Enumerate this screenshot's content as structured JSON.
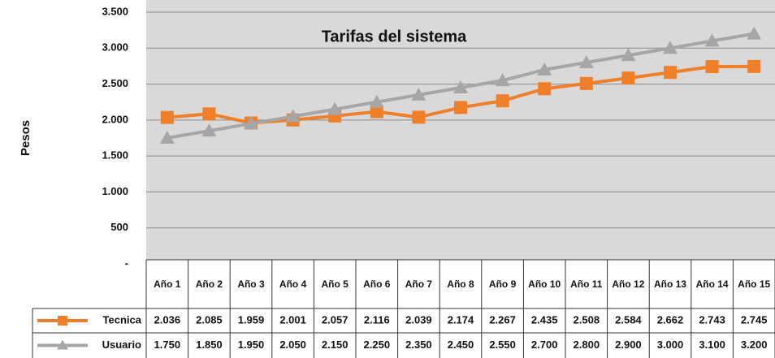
{
  "chart_data": {
    "type": "line",
    "title": "Tarifas del sistema",
    "y_label": "Pesos",
    "categories": [
      "Año 1",
      "Año 2",
      "Año 3",
      "Año 4",
      "Año 5",
      "Año 6",
      "Año 7",
      "Año 8",
      "Año 9",
      "Año 10",
      "Año 11",
      "Año 12",
      "Año 13",
      "Año 14",
      "Año 15"
    ],
    "series": [
      {
        "name": "Tecnica",
        "color": "#f07f2a",
        "marker": "square",
        "values": [
          2036,
          2085,
          1959,
          2001,
          2057,
          2116,
          2039,
          2174,
          2267,
          2435,
          2508,
          2584,
          2662,
          2743,
          2745
        ],
        "value_labels": [
          "2.036",
          "2.085",
          "1.959",
          "2.001",
          "2.057",
          "2.116",
          "2.039",
          "2.174",
          "2.267",
          "2.435",
          "2.508",
          "2.584",
          "2.662",
          "2.743",
          "2.745"
        ]
      },
      {
        "name": "Usuario",
        "color": "#a6a6a6",
        "marker": "triangle",
        "values": [
          1750,
          1850,
          1950,
          2050,
          2150,
          2250,
          2350,
          2450,
          2550,
          2700,
          2800,
          2900,
          3000,
          3100,
          3200
        ],
        "value_labels": [
          "1.750",
          "1.850",
          "1.950",
          "2.050",
          "2.150",
          "2.250",
          "2.350",
          "2.450",
          "2.550",
          "2.700",
          "2.800",
          "2.900",
          "3.000",
          "3.100",
          "3.200"
        ]
      }
    ],
    "ylim": [
      0,
      3500
    ],
    "yticks": [
      {
        "value": 0,
        "label": "-"
      },
      500,
      {
        "value": 1000,
        "label": "1.000"
      },
      {
        "value": 1500,
        "label": "1.500"
      },
      {
        "value": 2000,
        "label": "2.000"
      },
      {
        "value": 2500,
        "label": "2.500"
      },
      {
        "value": 3000,
        "label": "3.000"
      },
      {
        "value": 3500,
        "label": "3.500"
      }
    ],
    "grid": true
  }
}
